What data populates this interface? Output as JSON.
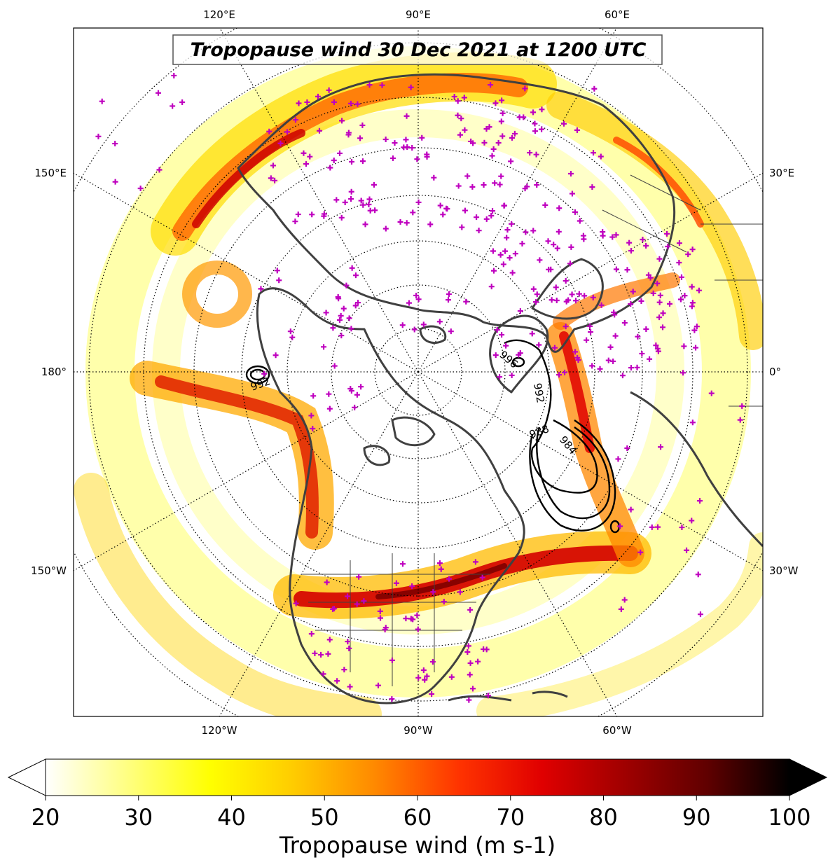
{
  "title": "Tropopause wind 30 Dec 2021 at 1200 UTC",
  "map": {
    "projection": "north-polar-stereographic",
    "top_labels": [
      "120°E",
      "90°E",
      "60°E"
    ],
    "bottom_labels": [
      "120°W",
      "90°W",
      "60°W"
    ],
    "left_labels": [
      "150°E",
      "180°",
      "150°W"
    ],
    "right_labels": [
      "30°E",
      "0°",
      "30°W"
    ],
    "station_marker_color": "#bf00bf",
    "coastline_color": "#404040",
    "pressure_contours": [
      {
        "label": "992"
      },
      {
        "label": "996"
      },
      {
        "label": "992"
      },
      {
        "label": "988"
      },
      {
        "label": "984"
      }
    ]
  },
  "colorbar": {
    "label": "Tropopause wind (m s-1)",
    "min": 20,
    "max": 100,
    "ticks": [
      "20",
      "30",
      "40",
      "50",
      "60",
      "70",
      "80",
      "90",
      "100"
    ],
    "extend": "both",
    "colormap": "hot_r",
    "colors": [
      "#ffffff",
      "#ffff80",
      "#ffff00",
      "#ffcc00",
      "#ff8800",
      "#ff3300",
      "#e00000",
      "#a00000",
      "#600000",
      "#000000"
    ]
  }
}
